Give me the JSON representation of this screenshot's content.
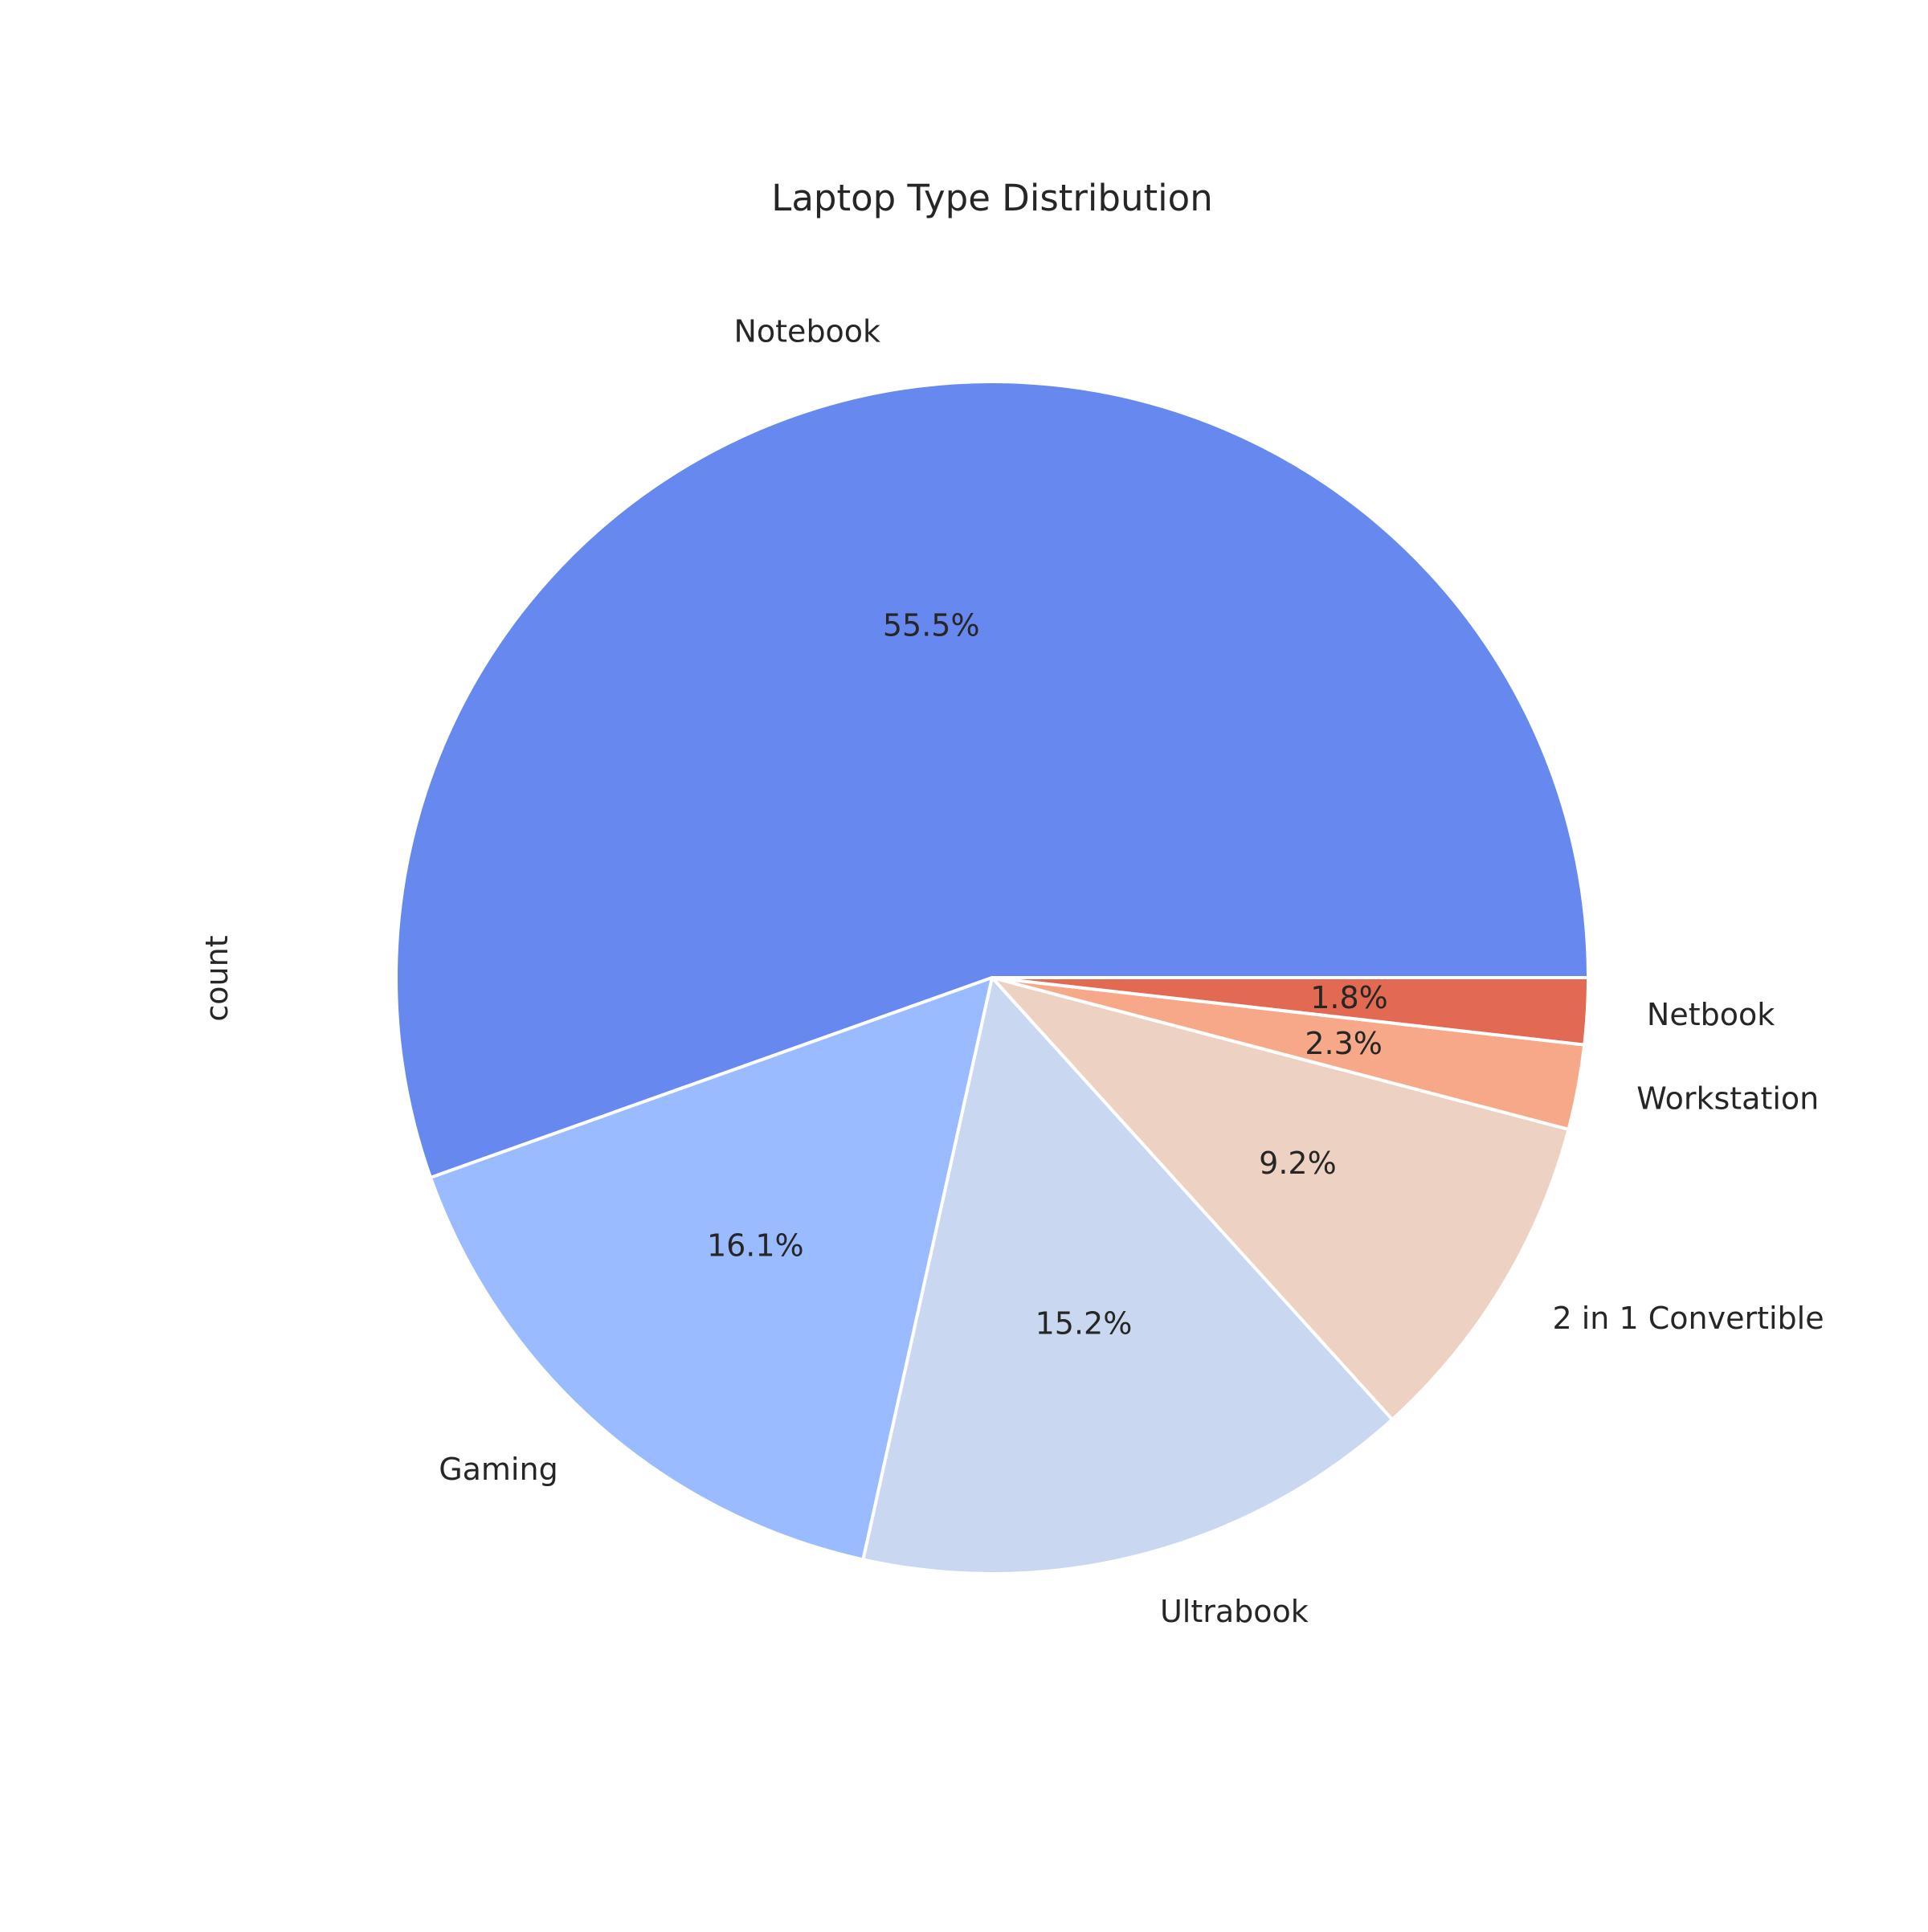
{
  "chart_data": {
    "type": "pie",
    "title": "Laptop Type Distribution",
    "ylabel": "count",
    "categories": [
      "Notebook",
      "Gaming",
      "Ultrabook",
      "2 in 1 Convertible",
      "Workstation",
      "Netbook"
    ],
    "values": [
      55.5,
      16.1,
      15.2,
      9.2,
      2.3,
      1.8
    ],
    "value_labels": [
      "55.5%",
      "16.1%",
      "15.2%",
      "9.2%",
      "2.3%",
      "1.8%"
    ],
    "colors": [
      "#6788ee",
      "#9abbff",
      "#c9d7f0",
      "#edd1c2",
      "#f7a889",
      "#e26952"
    ],
    "start_angle_deg": 0,
    "direction": "counterclockwise",
    "edge_color": "#ffffff"
  }
}
